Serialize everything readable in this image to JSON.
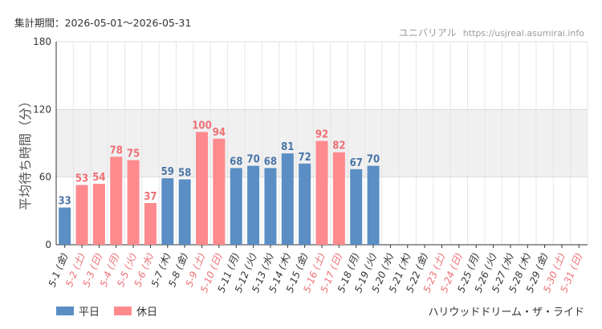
{
  "header": {
    "period": "集計期間：2026-05-01～2026-05-31",
    "site_name": "ユニバリアル",
    "site_url": "https://usjreal.asumirai.info"
  },
  "footer": {
    "ride_name": "ハリウッドドリーム・ザ・ライド"
  },
  "colors": {
    "weekday": "#5b8ec4",
    "holiday": "#ff8a8e",
    "weekday_label": "#4a74a6",
    "holiday_label": "#ef6f74",
    "tick_holiday": "#ef6f74",
    "tick_weekday": "#333333"
  },
  "chart_data": {
    "type": "bar",
    "ylabel": "平均待ち時間（分）",
    "xlabel": "",
    "ylim": [
      0,
      180
    ],
    "yticks": [
      0,
      60,
      120,
      180
    ],
    "shaded_band": [
      60,
      120
    ],
    "grid": true,
    "legend": [
      {
        "name": "平日",
        "kind": "weekday"
      },
      {
        "name": "休日",
        "kind": "holiday"
      }
    ],
    "legend_position": "bottom-left",
    "categories": [
      "5-1 (金)",
      "5-2 (土)",
      "5-3 (日)",
      "5-4 (月)",
      "5-5 (火)",
      "5-6 (水)",
      "5-7 (木)",
      "5-8 (金)",
      "5-9 (土)",
      "5-10 (日)",
      "5-11 (月)",
      "5-12 (火)",
      "5-13 (水)",
      "5-14 (木)",
      "5-15 (金)",
      "5-16 (土)",
      "5-17 (日)",
      "5-18 (月)",
      "5-19 (火)",
      "5-20 (水)",
      "5-21 (木)",
      "5-22 (金)",
      "5-23 (土)",
      "5-24 (日)",
      "5-25 (月)",
      "5-26 (火)",
      "5-27 (水)",
      "5-28 (木)",
      "5-29 (金)",
      "5-30 (土)",
      "5-31 (日)"
    ],
    "kinds": [
      "weekday",
      "holiday",
      "holiday",
      "holiday",
      "holiday",
      "holiday",
      "weekday",
      "weekday",
      "holiday",
      "holiday",
      "weekday",
      "weekday",
      "weekday",
      "weekday",
      "weekday",
      "holiday",
      "holiday",
      "weekday",
      "weekday",
      "weekday",
      "weekday",
      "weekday",
      "holiday",
      "holiday",
      "weekday",
      "weekday",
      "weekday",
      "weekday",
      "weekday",
      "holiday",
      "holiday"
    ],
    "values": [
      33,
      53,
      54,
      78,
      75,
      37,
      59,
      58,
      100,
      94,
      68,
      70,
      68,
      81,
      72,
      92,
      82,
      67,
      70,
      null,
      null,
      null,
      null,
      null,
      null,
      null,
      null,
      null,
      null,
      null,
      null
    ]
  }
}
